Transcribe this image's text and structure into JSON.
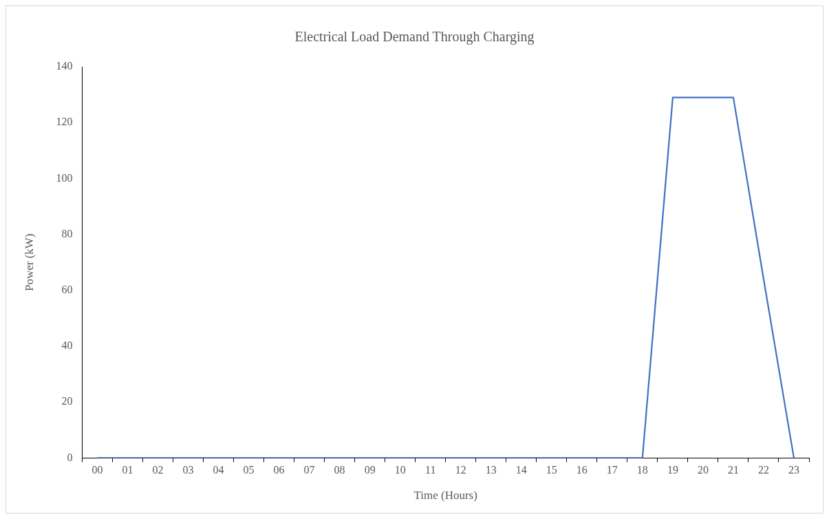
{
  "chart_data": {
    "type": "line",
    "title": "Electrical Load Demand Through Charging",
    "xlabel": "Time (Hours)",
    "ylabel": "Power (kW)",
    "categories": [
      "00",
      "01",
      "02",
      "03",
      "04",
      "05",
      "06",
      "07",
      "08",
      "09",
      "10",
      "11",
      "12",
      "13",
      "14",
      "15",
      "16",
      "17",
      "18",
      "19",
      "20",
      "21",
      "22",
      "23"
    ],
    "series": [
      {
        "color": "#4472c4",
        "values": [
          0,
          0,
          0,
          0,
          0,
          0,
          0,
          0,
          0,
          0,
          0,
          0,
          0,
          0,
          0,
          0,
          0,
          0,
          0,
          129,
          129,
          129,
          64,
          0
        ]
      }
    ],
    "ylim": [
      0,
      140
    ],
    "yticks": [
      0,
      20,
      40,
      60,
      80,
      100,
      120,
      140
    ],
    "grid": false,
    "legend": false,
    "marker": "none",
    "line_style": "solid"
  }
}
